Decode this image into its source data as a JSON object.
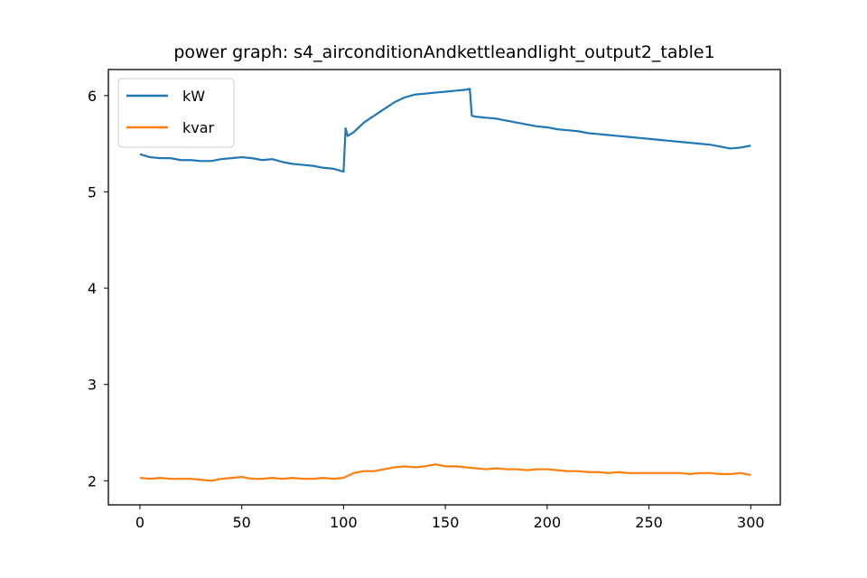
{
  "chart_data": {
    "type": "line",
    "title": "power graph: s4_airconditionAndkettleandlight_output2_table1",
    "xlabel": "",
    "ylabel": "",
    "xlim": [
      -15.5,
      314.5
    ],
    "ylim": [
      1.75,
      6.27
    ],
    "xticks": [
      0,
      50,
      100,
      150,
      200,
      250,
      300
    ],
    "yticks": [
      2,
      3,
      4,
      5,
      6
    ],
    "grid": false,
    "legend": "top-left",
    "series": [
      {
        "name": "kW",
        "color": "#1f77b4",
        "points": [
          [
            0,
            5.39
          ],
          [
            5,
            5.36
          ],
          [
            10,
            5.35
          ],
          [
            15,
            5.35
          ],
          [
            20,
            5.33
          ],
          [
            25,
            5.33
          ],
          [
            30,
            5.32
          ],
          [
            35,
            5.32
          ],
          [
            40,
            5.34
          ],
          [
            45,
            5.35
          ],
          [
            50,
            5.36
          ],
          [
            55,
            5.35
          ],
          [
            60,
            5.33
          ],
          [
            65,
            5.34
          ],
          [
            70,
            5.31
          ],
          [
            75,
            5.29
          ],
          [
            80,
            5.28
          ],
          [
            85,
            5.27
          ],
          [
            90,
            5.25
          ],
          [
            95,
            5.24
          ],
          [
            100,
            5.21
          ],
          [
            101,
            5.66
          ],
          [
            102,
            5.58
          ],
          [
            105,
            5.62
          ],
          [
            110,
            5.72
          ],
          [
            115,
            5.79
          ],
          [
            120,
            5.86
          ],
          [
            125,
            5.93
          ],
          [
            130,
            5.98
          ],
          [
            135,
            6.01
          ],
          [
            140,
            6.02
          ],
          [
            145,
            6.03
          ],
          [
            150,
            6.04
          ],
          [
            155,
            6.05
          ],
          [
            160,
            6.06
          ],
          [
            162,
            6.07
          ],
          [
            163,
            5.79
          ],
          [
            165,
            5.78
          ],
          [
            170,
            5.77
          ],
          [
            175,
            5.76
          ],
          [
            180,
            5.74
          ],
          [
            185,
            5.72
          ],
          [
            190,
            5.7
          ],
          [
            195,
            5.68
          ],
          [
            200,
            5.67
          ],
          [
            205,
            5.65
          ],
          [
            210,
            5.64
          ],
          [
            215,
            5.63
          ],
          [
            220,
            5.61
          ],
          [
            225,
            5.6
          ],
          [
            230,
            5.59
          ],
          [
            235,
            5.58
          ],
          [
            240,
            5.57
          ],
          [
            245,
            5.56
          ],
          [
            250,
            5.55
          ],
          [
            255,
            5.54
          ],
          [
            260,
            5.53
          ],
          [
            265,
            5.52
          ],
          [
            270,
            5.51
          ],
          [
            275,
            5.5
          ],
          [
            280,
            5.49
          ],
          [
            285,
            5.47
          ],
          [
            290,
            5.45
          ],
          [
            295,
            5.46
          ],
          [
            300,
            5.48
          ]
        ]
      },
      {
        "name": "kvar",
        "color": "#ff7f0e",
        "points": [
          [
            0,
            2.03
          ],
          [
            5,
            2.02
          ],
          [
            10,
            2.03
          ],
          [
            15,
            2.02
          ],
          [
            20,
            2.02
          ],
          [
            25,
            2.02
          ],
          [
            30,
            2.01
          ],
          [
            35,
            2.0
          ],
          [
            40,
            2.02
          ],
          [
            45,
            2.03
          ],
          [
            50,
            2.04
          ],
          [
            55,
            2.02
          ],
          [
            60,
            2.02
          ],
          [
            65,
            2.03
          ],
          [
            70,
            2.02
          ],
          [
            75,
            2.03
          ],
          [
            80,
            2.02
          ],
          [
            85,
            2.02
          ],
          [
            90,
            2.03
          ],
          [
            95,
            2.02
          ],
          [
            100,
            2.03
          ],
          [
            105,
            2.08
          ],
          [
            110,
            2.1
          ],
          [
            115,
            2.1
          ],
          [
            120,
            2.12
          ],
          [
            125,
            2.14
          ],
          [
            130,
            2.15
          ],
          [
            135,
            2.14
          ],
          [
            140,
            2.15
          ],
          [
            145,
            2.17
          ],
          [
            150,
            2.15
          ],
          [
            155,
            2.15
          ],
          [
            160,
            2.14
          ],
          [
            165,
            2.13
          ],
          [
            170,
            2.12
          ],
          [
            175,
            2.13
          ],
          [
            180,
            2.12
          ],
          [
            185,
            2.12
          ],
          [
            190,
            2.11
          ],
          [
            195,
            2.12
          ],
          [
            200,
            2.12
          ],
          [
            205,
            2.11
          ],
          [
            210,
            2.1
          ],
          [
            215,
            2.1
          ],
          [
            220,
            2.09
          ],
          [
            225,
            2.09
          ],
          [
            230,
            2.08
          ],
          [
            235,
            2.09
          ],
          [
            240,
            2.08
          ],
          [
            245,
            2.08
          ],
          [
            250,
            2.08
          ],
          [
            255,
            2.08
          ],
          [
            260,
            2.08
          ],
          [
            265,
            2.08
          ],
          [
            270,
            2.07
          ],
          [
            275,
            2.08
          ],
          [
            280,
            2.08
          ],
          [
            285,
            2.07
          ],
          [
            290,
            2.07
          ],
          [
            295,
            2.08
          ],
          [
            300,
            2.06
          ]
        ]
      }
    ]
  }
}
